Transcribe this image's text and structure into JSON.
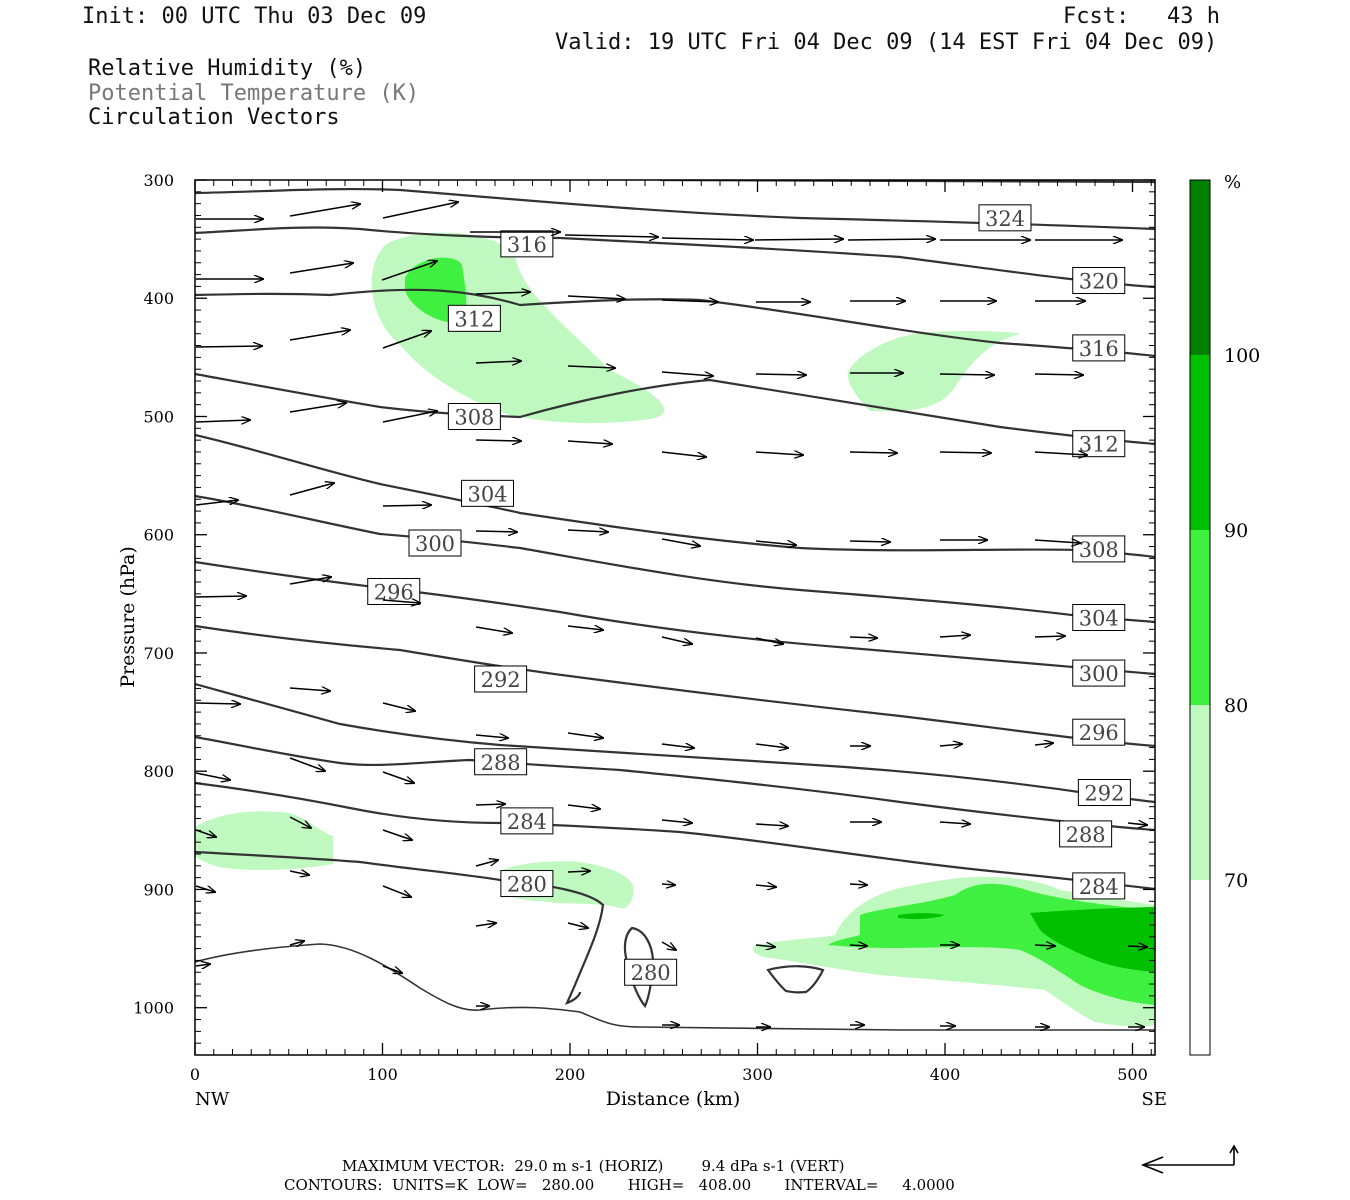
{
  "header": {
    "init": "Init: 00 UTC Thu 03 Dec 09",
    "fcst_label": "Fcst:",
    "fcst_value": "43 h",
    "valid": "Valid: 19 UTC Fri 04 Dec 09 (14 EST Fri 04 Dec 09)",
    "fields": [
      "Relative Humidity (%)",
      "Potential Temperature (K)",
      "Circulation Vectors"
    ]
  },
  "chart_data": {
    "type": "cross-section",
    "xlabel": "Distance (km)",
    "ylabel": "Pressure (hPa)",
    "xlim": [
      0,
      512
    ],
    "ylim": [
      300,
      1040
    ],
    "x_ticks": [
      0,
      100,
      200,
      300,
      400,
      500
    ],
    "y_ticks": [
      300,
      400,
      500,
      600,
      700,
      800,
      900,
      1000
    ],
    "x_end_labels": {
      "left": "NW",
      "right": "SE"
    },
    "colorbar": {
      "unit": "%",
      "levels": [
        70,
        80,
        90,
        100
      ],
      "colors": [
        "#ffffff",
        "#c0f9c0",
        "#40f040",
        "#00c000",
        "#008000"
      ]
    },
    "theta_labels": [
      {
        "value": "324",
        "x": 432,
        "p": 332
      },
      {
        "value": "320",
        "x": 482,
        "p": 385
      },
      {
        "value": "316",
        "x": 177,
        "p": 354
      },
      {
        "value": "316",
        "x": 482,
        "p": 442
      },
      {
        "value": "312",
        "x": 149,
        "p": 417
      },
      {
        "value": "312",
        "x": 482,
        "p": 523
      },
      {
        "value": "308",
        "x": 149,
        "p": 500
      },
      {
        "value": "308",
        "x": 482,
        "p": 612
      },
      {
        "value": "304",
        "x": 156,
        "p": 565
      },
      {
        "value": "304",
        "x": 482,
        "p": 670
      },
      {
        "value": "300",
        "x": 128,
        "p": 607
      },
      {
        "value": "300",
        "x": 482,
        "p": 717
      },
      {
        "value": "296",
        "x": 106,
        "p": 648
      },
      {
        "value": "296",
        "x": 482,
        "p": 767
      },
      {
        "value": "292",
        "x": 163,
        "p": 722
      },
      {
        "value": "292",
        "x": 485,
        "p": 818
      },
      {
        "value": "288",
        "x": 163,
        "p": 792
      },
      {
        "value": "288",
        "x": 475,
        "p": 853
      },
      {
        "value": "284",
        "x": 177,
        "p": 842
      },
      {
        "value": "284",
        "x": 482,
        "p": 897
      },
      {
        "value": "280",
        "x": 177,
        "p": 895
      },
      {
        "value": "280",
        "x": 243,
        "p": 970
      }
    ],
    "footer": {
      "max_vector": "MAXIMUM VECTOR:  29.0 m s-1 (HORIZ)        9.4 dPa s-1 (VERT)",
      "contours": "CONTOURS:  UNITS=K  LOW=   280.00       HIGH=   408.00       INTERVAL=     4.0000"
    }
  }
}
